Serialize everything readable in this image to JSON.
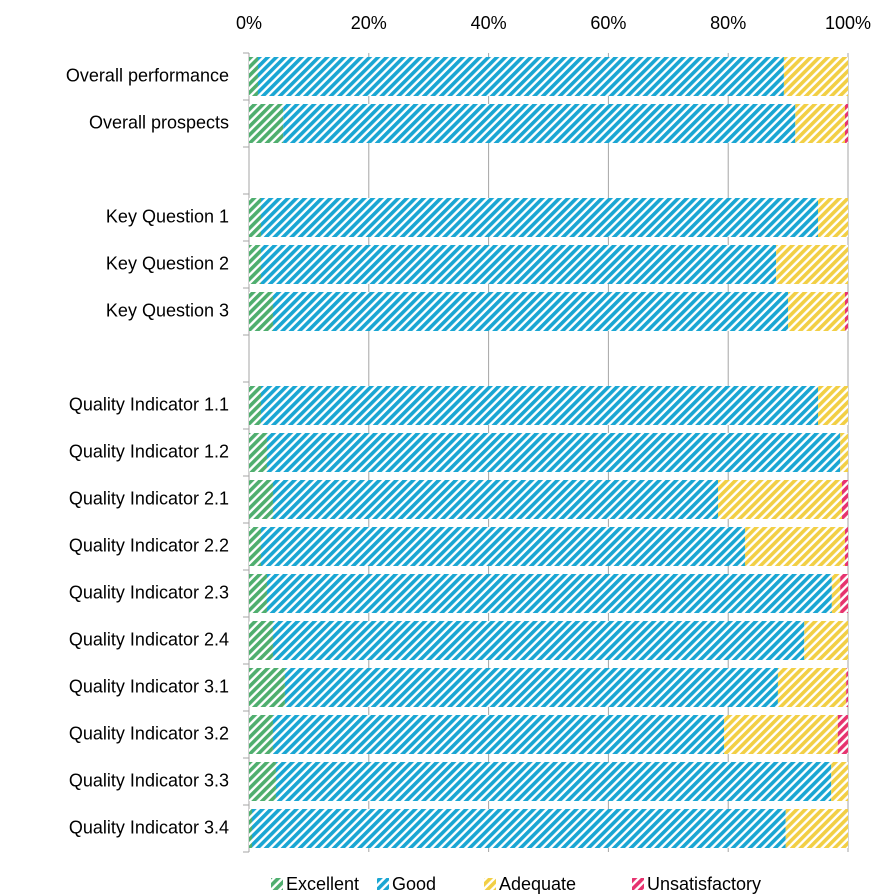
{
  "chart_data": {
    "type": "stacked_barh",
    "categories": [
      "Overall performance",
      "Overall prospects",
      null,
      "Key Question 1",
      "Key Question 2",
      "Key Question 3",
      null,
      "Quality Indicator 1.1",
      "Quality Indicator 1.2",
      "Quality Indicator 2.1",
      "Quality Indicator 2.2",
      "Quality Indicator 2.3",
      "Quality Indicator 2.4",
      "Quality Indicator 3.1",
      "Quality Indicator 3.2",
      "Quality Indicator 3.3",
      "Quality Indicator 3.4"
    ],
    "series": [
      {
        "name": "Excellent",
        "color": "#4fae6e",
        "values": [
          1.5,
          5.7,
          null,
          2,
          2,
          4,
          null,
          2,
          3,
          4,
          2,
          3,
          4,
          6,
          4,
          4.5,
          0.5
        ]
      },
      {
        "name": "Good",
        "color": "#1aa6d3",
        "values": [
          87.8,
          85.5,
          null,
          93,
          86,
          86,
          null,
          93,
          95.7,
          74.3,
          80.8,
          94.3,
          88.7,
          82.3,
          75.3,
          92.7,
          89.1
        ]
      },
      {
        "name": "Adequate",
        "color": "#f2cf45",
        "values": [
          10.7,
          8.3,
          null,
          5,
          12,
          9.5,
          null,
          5,
          1.3,
          20.7,
          16.7,
          1.4,
          7.3,
          11.4,
          19,
          2.8,
          10.4
        ]
      },
      {
        "name": "Unsatisfactory",
        "color": "#e6336f",
        "values": [
          0,
          0.5,
          null,
          0,
          0,
          0.5,
          null,
          0,
          0,
          1,
          0.5,
          1.3,
          0,
          0.3,
          1.7,
          0,
          0
        ]
      }
    ],
    "xlim": [
      0,
      100
    ],
    "xticks": [
      {
        "value": 0,
        "label": "0%"
      },
      {
        "value": 20,
        "label": "20%"
      },
      {
        "value": 40,
        "label": "40%"
      },
      {
        "value": 60,
        "label": "60%"
      },
      {
        "value": 80,
        "label": "80%"
      },
      {
        "value": 100,
        "label": "100%"
      }
    ],
    "grid": true,
    "legend": "bottom"
  }
}
